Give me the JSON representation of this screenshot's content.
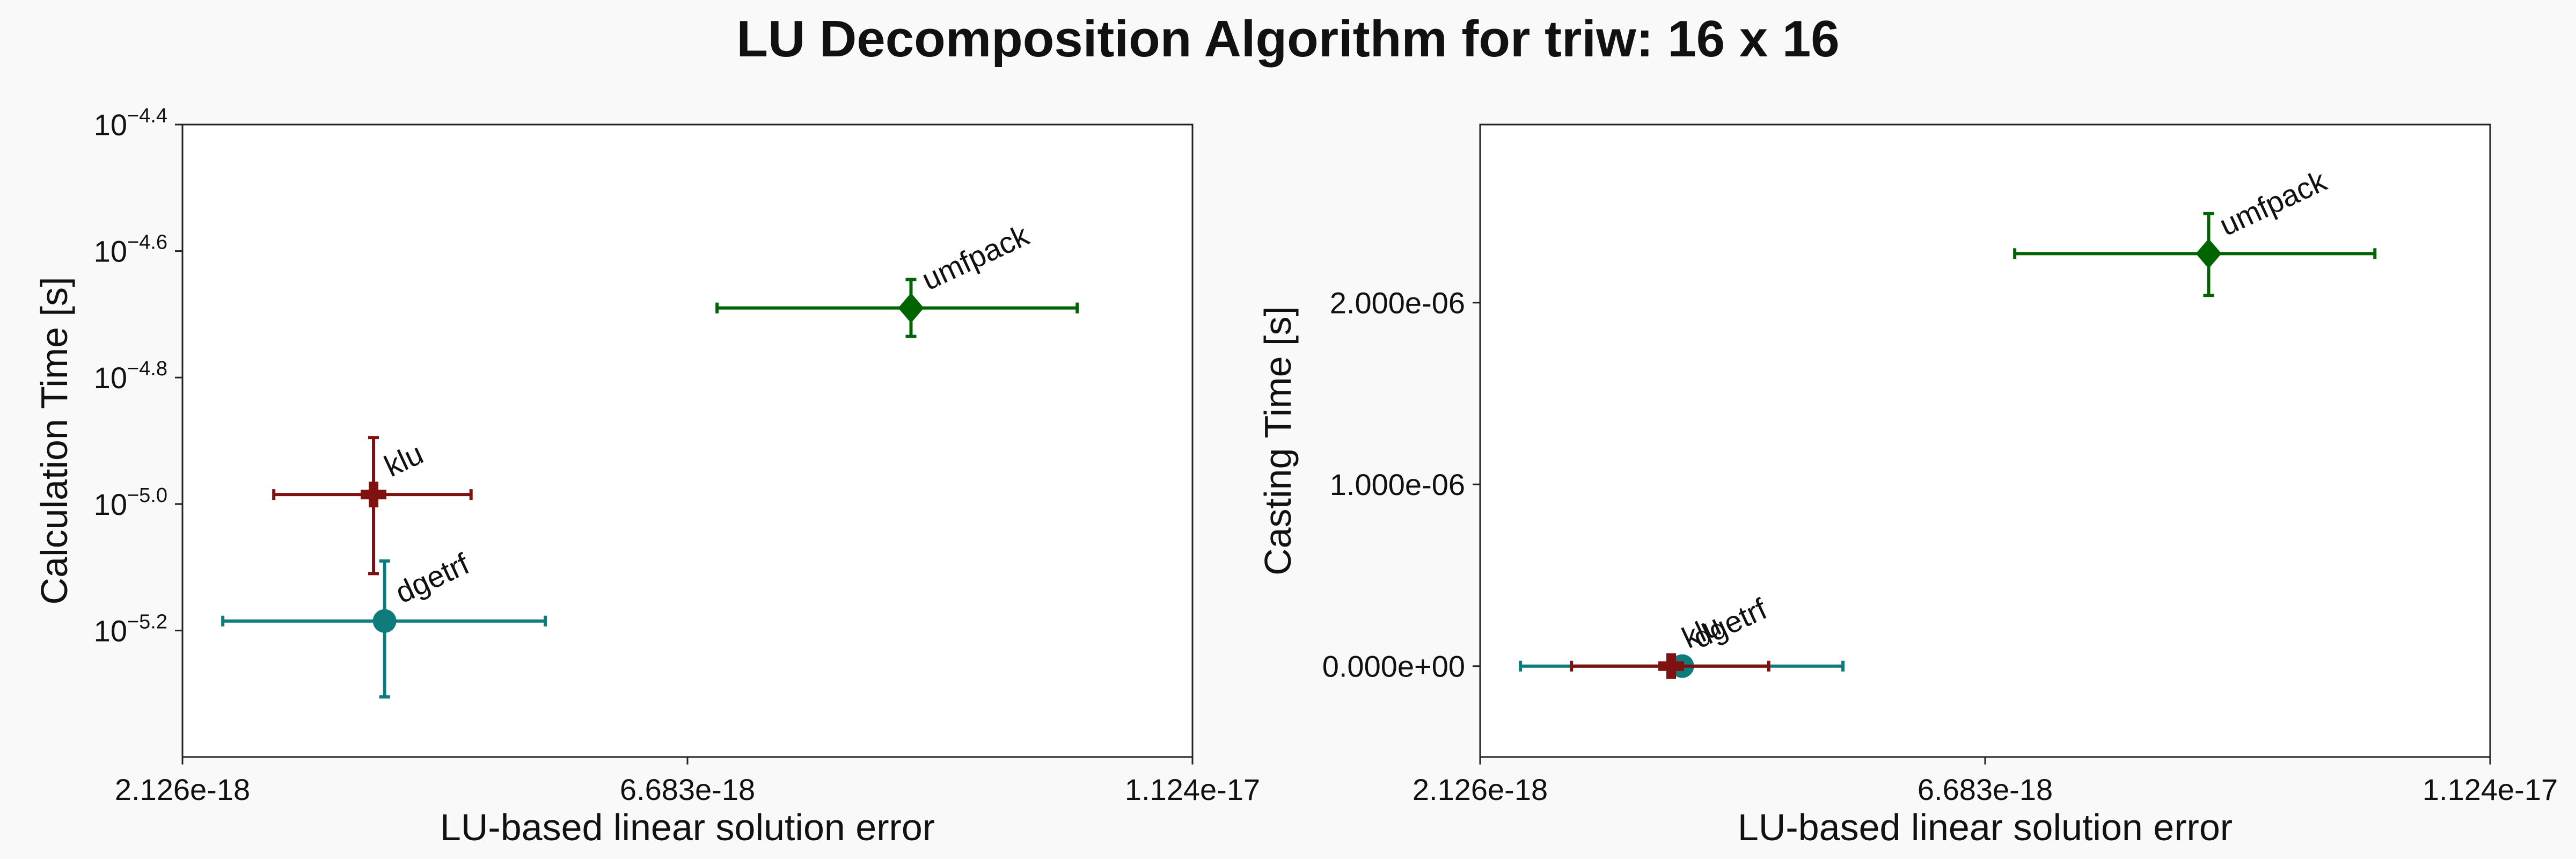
{
  "title": "LU Decomposition Algorithm for triw: 16 x 16",
  "chart_data": [
    {
      "type": "scatter",
      "xlabel": "LU-based linear solution error",
      "ylabel": "Calculation Time [s]",
      "xscale": "linear",
      "yscale": "log",
      "xlim": [
        2.126e-18,
        1.124e-17
      ],
      "ylim_log10": [
        -5.4,
        -4.4
      ],
      "xticks": [
        {
          "value": 2.126e-18,
          "label": "2.126e-18"
        },
        {
          "value": 6.683e-18,
          "label": "6.683e-18"
        },
        {
          "value": 1.124e-17,
          "label": "1.124e-17"
        }
      ],
      "yticks": [
        {
          "value_log10": -5.2,
          "base": "10",
          "exp": "−5.2"
        },
        {
          "value_log10": -5.0,
          "base": "10",
          "exp": "−5.0"
        },
        {
          "value_log10": -4.8,
          "base": "10",
          "exp": "−4.8"
        },
        {
          "value_log10": -4.6,
          "base": "10",
          "exp": "−4.6"
        },
        {
          "value_log10": -4.4,
          "base": "10",
          "exp": "−4.4"
        }
      ],
      "grid": true,
      "points": [
        {
          "label": "klu",
          "marker": "cross",
          "color": "#7f1111",
          "x": 3.85e-18,
          "xerr": [
            2.95e-18,
            4.73e-18
          ],
          "y_log10": -4.985,
          "yerr_log10": [
            -5.11,
            -4.895
          ]
        },
        {
          "label": "dgetrf",
          "marker": "circle",
          "color": "#0f7c7c",
          "x": 3.95e-18,
          "xerr": [
            2.49e-18,
            5.4e-18
          ],
          "y_log10": -5.185,
          "yerr_log10": [
            -5.305,
            -5.09
          ]
        },
        {
          "label": "umfpack",
          "marker": "diamond",
          "color": "#006400",
          "x": 8.7e-18,
          "xerr": [
            6.95e-18,
            1.02e-17
          ],
          "y_log10": -4.69,
          "yerr_log10": [
            -4.735,
            -4.645
          ]
        }
      ]
    },
    {
      "type": "scatter",
      "xlabel": "LU-based linear solution error",
      "ylabel": "Casting Time [s]",
      "xscale": "linear",
      "yscale": "linear",
      "xlim": [
        2.126e-18,
        1.124e-17
      ],
      "ylim": [
        -5e-07,
        2.98e-06
      ],
      "xticks": [
        {
          "value": 2.126e-18,
          "label": "2.126e-18"
        },
        {
          "value": 6.683e-18,
          "label": "6.683e-18"
        },
        {
          "value": 1.124e-17,
          "label": "1.124e-17"
        }
      ],
      "yticks": [
        {
          "value": 0,
          "label": "0.000e+00"
        },
        {
          "value": 1e-06,
          "label": "1.000e-06"
        },
        {
          "value": 2e-06,
          "label": "2.000e-06"
        }
      ],
      "grid": true,
      "points": [
        {
          "label": "dgetrf",
          "marker": "circle",
          "color": "#0f7c7c",
          "x": 3.95e-18,
          "xerr": [
            2.49e-18,
            5.4e-18
          ],
          "y": 0,
          "yerr": [
            0,
            0
          ]
        },
        {
          "label": "klu",
          "marker": "cross",
          "color": "#7f1111",
          "x": 3.85e-18,
          "xerr": [
            2.95e-18,
            4.73e-18
          ],
          "y": 0,
          "yerr": [
            0,
            0
          ]
        },
        {
          "label": "umfpack",
          "marker": "diamond",
          "color": "#006400",
          "x": 8.7e-18,
          "xerr": [
            6.95e-18,
            1.02e-17
          ],
          "y": 2.27e-06,
          "yerr": [
            2.04e-06,
            2.49e-06
          ]
        }
      ]
    }
  ]
}
